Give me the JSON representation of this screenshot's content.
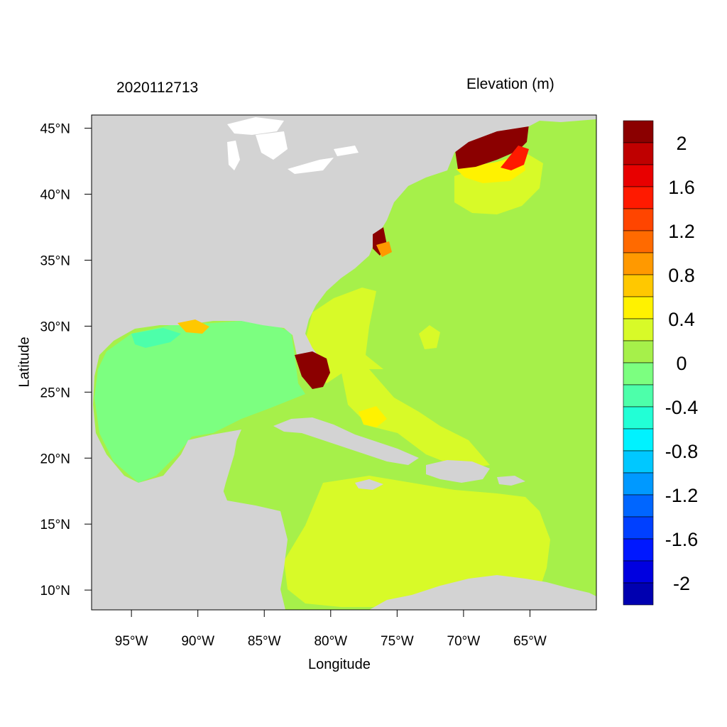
{
  "map": {
    "date_label": "2020112713",
    "units_label": "Elevation (m)",
    "xlabel": "Longitude",
    "ylabel": "Latitude",
    "lon_range": [
      -98,
      -60
    ],
    "lat_range": [
      8.5,
      46
    ],
    "lon_ticks": [
      {
        "value": -95,
        "label": "95°W"
      },
      {
        "value": -90,
        "label": "90°W"
      },
      {
        "value": -85,
        "label": "85°W"
      },
      {
        "value": -80,
        "label": "80°W"
      },
      {
        "value": -75,
        "label": "75°W"
      },
      {
        "value": -70,
        "label": "70°W"
      },
      {
        "value": -65,
        "label": "65°W"
      }
    ],
    "lat_ticks": [
      {
        "value": 45,
        "label": "45°N"
      },
      {
        "value": 40,
        "label": "40°N"
      },
      {
        "value": 35,
        "label": "35°N"
      },
      {
        "value": 30,
        "label": "30°N"
      },
      {
        "value": 25,
        "label": "25°N"
      },
      {
        "value": 20,
        "label": "20°N"
      },
      {
        "value": 15,
        "label": "15°N"
      },
      {
        "value": 10,
        "label": "10°N"
      }
    ],
    "colors": {
      "land": "#d3d3d3",
      "ocean_bg": "#a6f04a"
    },
    "colorbar": {
      "bins": [
        {
          "from": 2.2,
          "to": 2.0,
          "color": "#8b0000"
        },
        {
          "from": 2.0,
          "to": 1.8,
          "color": "#bf0000"
        },
        {
          "from": 1.8,
          "to": 1.6,
          "color": "#e80000"
        },
        {
          "from": 1.6,
          "to": 1.4,
          "color": "#ff1a00"
        },
        {
          "from": 1.4,
          "to": 1.2,
          "color": "#ff4500"
        },
        {
          "from": 1.2,
          "to": 1.0,
          "color": "#ff6a00"
        },
        {
          "from": 1.0,
          "to": 0.8,
          "color": "#ff9900"
        },
        {
          "from": 0.8,
          "to": 0.6,
          "color": "#ffc800"
        },
        {
          "from": 0.6,
          "to": 0.4,
          "color": "#fff200"
        },
        {
          "from": 0.4,
          "to": 0.2,
          "color": "#d8fa28"
        },
        {
          "from": 0.2,
          "to": 0.0,
          "color": "#a6f04a"
        },
        {
          "from": 0.0,
          "to": -0.2,
          "color": "#7cff80"
        },
        {
          "from": -0.2,
          "to": -0.4,
          "color": "#4dffaa"
        },
        {
          "from": -0.4,
          "to": -0.6,
          "color": "#22ffd6"
        },
        {
          "from": -0.6,
          "to": -0.8,
          "color": "#00f2ff"
        },
        {
          "from": -0.8,
          "to": -1.0,
          "color": "#00c8ff"
        },
        {
          "from": -1.0,
          "to": -1.2,
          "color": "#0099ff"
        },
        {
          "from": -1.2,
          "to": -1.4,
          "color": "#0066ff"
        },
        {
          "from": -1.4,
          "to": -1.6,
          "color": "#0040ff"
        },
        {
          "from": -1.6,
          "to": -1.8,
          "color": "#0018ff"
        },
        {
          "from": -1.8,
          "to": -2.0,
          "color": "#0000e0"
        },
        {
          "from": -2.0,
          "to": -2.2,
          "color": "#0000b0"
        }
      ],
      "labels": [
        "2",
        "1.6",
        "1.2",
        "0.8",
        "0.4",
        "0",
        "-0.4",
        "-0.8",
        "-1.2",
        "-1.6",
        "-2"
      ]
    }
  }
}
